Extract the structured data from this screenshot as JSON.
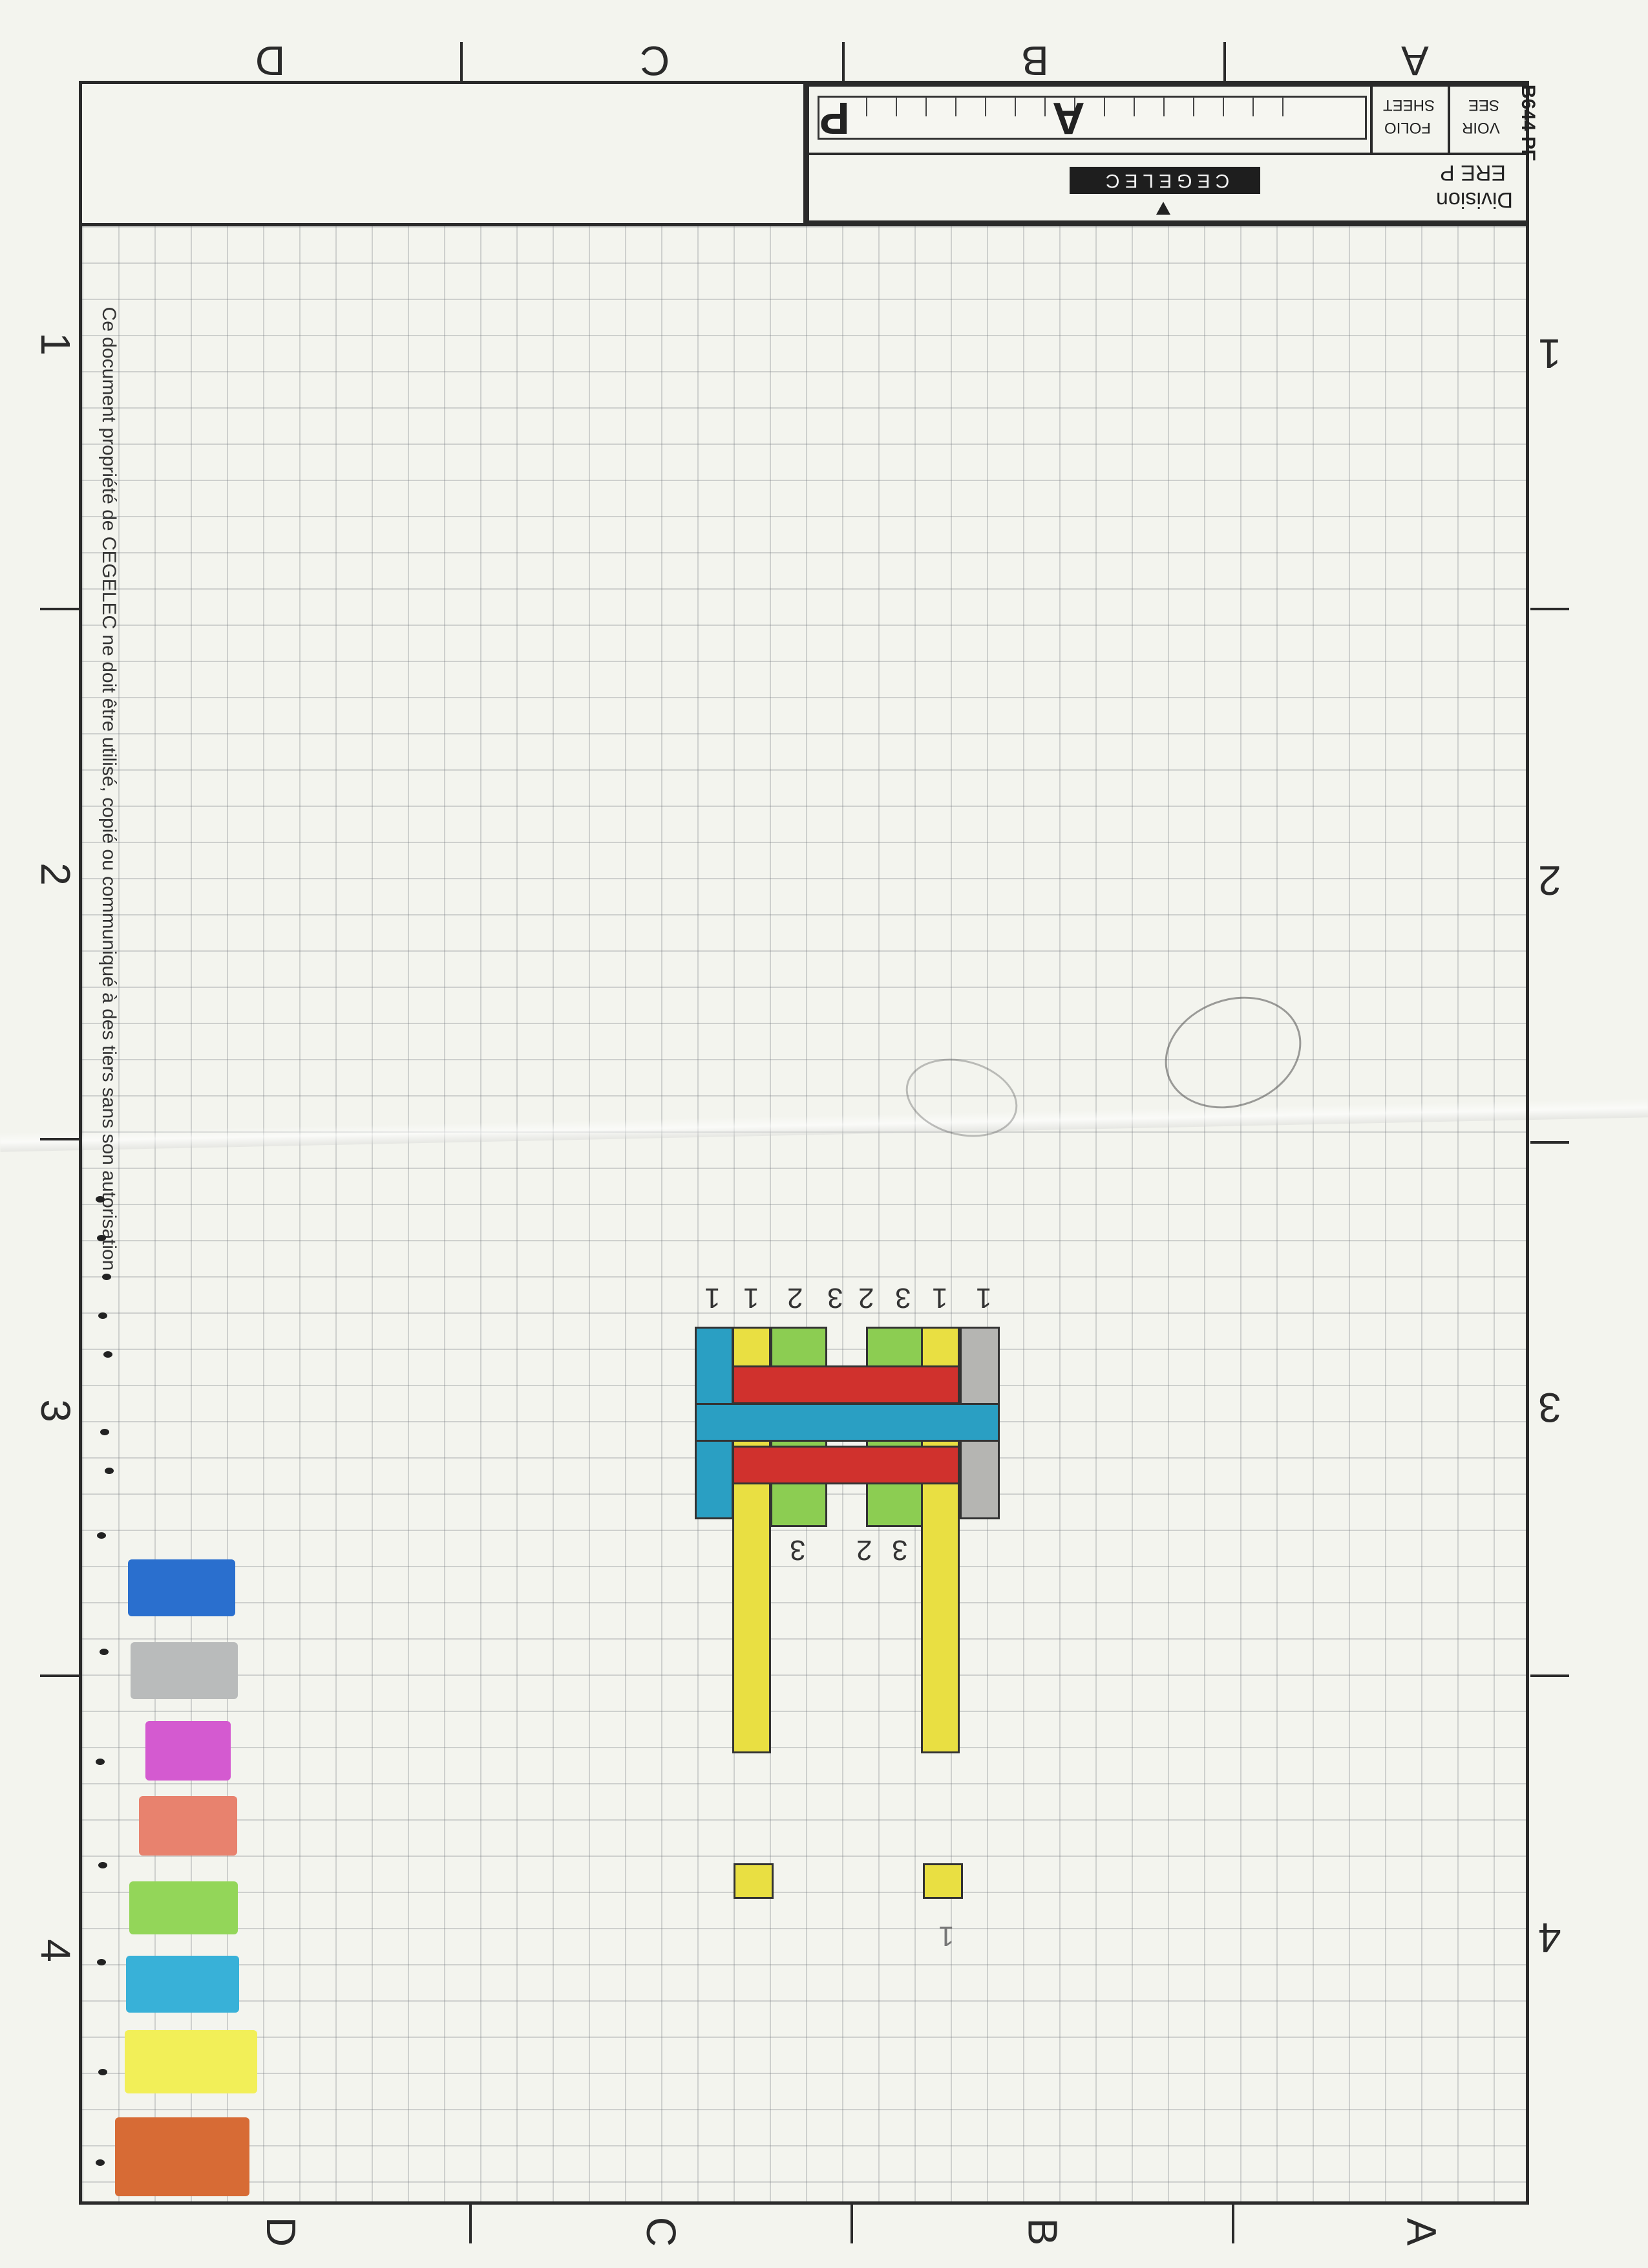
{
  "title_block": {
    "sheet_letters": [
      "P",
      "A"
    ],
    "brand": "CEGELEC",
    "division_label": "Division",
    "division_value": "ERE P",
    "folio_label": "FOLIO",
    "sheet_label": "SHEET",
    "voir_label": "VOIR",
    "see_label": "SEE",
    "form_code": "B644 PF"
  },
  "zones": {
    "columns_top": [
      "D",
      "C",
      "B",
      "A"
    ],
    "columns_bottom": [
      "D",
      "C",
      "B",
      "A"
    ],
    "rows_left": [
      "1",
      "2",
      "3",
      "4"
    ],
    "rows_right": [
      "1",
      "2",
      "3",
      "4"
    ]
  },
  "side_note": "Ce document propriété de CEGELEC ne doit être utilisé, copié ou communiqué à des tiers sans son autorisation",
  "drawing": {
    "top_labels": [
      "1",
      "1",
      "2",
      "3",
      "2",
      "3",
      "1",
      "1"
    ],
    "bottom_labels": [
      "3",
      "2",
      "3"
    ],
    "foot_label": "1"
  },
  "swatches": [
    {
      "name": "blue",
      "color": "#2a6fce"
    },
    {
      "name": "grey",
      "color": "#b9bbbb"
    },
    {
      "name": "magenta",
      "color": "#d45ad0"
    },
    {
      "name": "salmon",
      "color": "#e8826e"
    },
    {
      "name": "light-green",
      "color": "#93d659"
    },
    {
      "name": "cyan",
      "color": "#38b1d8"
    },
    {
      "name": "yellow",
      "color": "#f2ef58"
    },
    {
      "name": "orange-brown",
      "color": "#d76b35"
    }
  ],
  "colors": {
    "frame": "#2a2a2a",
    "bar_blue": "#2a9fc3",
    "bar_red": "#d0312d",
    "bar_green": "#8ccd52",
    "bar_yellow": "#e9df42",
    "bar_grey": "#b5b5b2"
  }
}
